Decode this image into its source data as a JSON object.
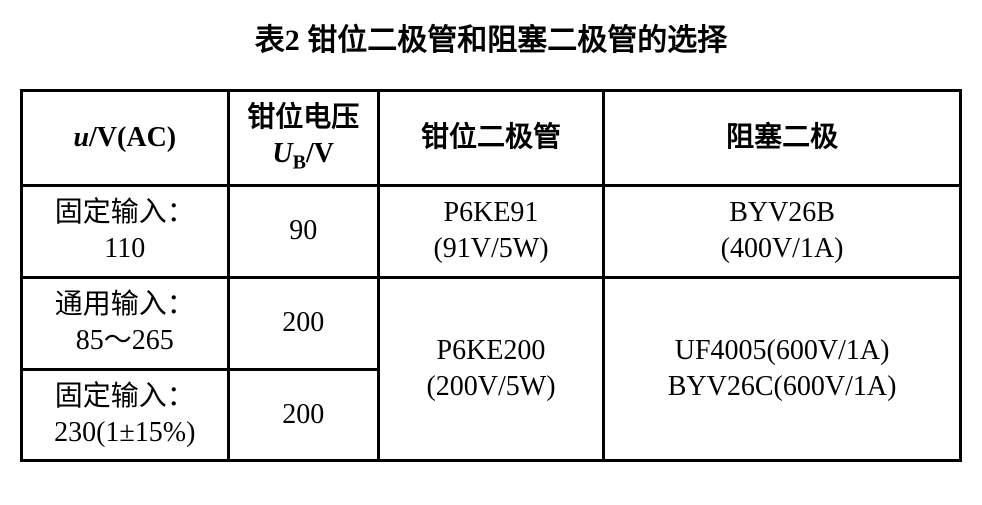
{
  "title": "表2 钳位二极管和阻塞二极管的选择",
  "table": {
    "headers": {
      "col1_line1": "u",
      "col1_line2": "/V(AC)",
      "col2_line1": "钳位电压",
      "col2_line2_pre": "U",
      "col2_line2_sub": "B",
      "col2_line2_post": "/V",
      "col3": "钳位二极管",
      "col4": "阻塞二极"
    },
    "rows": [
      {
        "c1_line1": "固定输入：",
        "c1_line2": "110",
        "c2": "90",
        "c3_line1": "P6KE91",
        "c3_line2": "(91V/5W)",
        "c4_line1": "BYV26B",
        "c4_line2": "(400V/1A)"
      },
      {
        "c1_line1": "通用输入：",
        "c1_line2": "85～265",
        "c2": "200",
        "c3_line1": "P6KE200",
        "c3_line2": "(200V/5W)",
        "c4_line1": "UF4005(600V/1A)",
        "c4_line2": "BYV26C(600V/1A)"
      },
      {
        "c1_line1": "固定输入：",
        "c1_line2": "230(1±15%)",
        "c2": "200"
      }
    ]
  },
  "style": {
    "background_color": "#ffffff",
    "text_color": "#000000",
    "border_color": "#000000",
    "border_width": 3,
    "title_fontsize": 30,
    "cell_fontsize": 28,
    "sub_fontsize": 20,
    "font_family": "SimSun"
  }
}
